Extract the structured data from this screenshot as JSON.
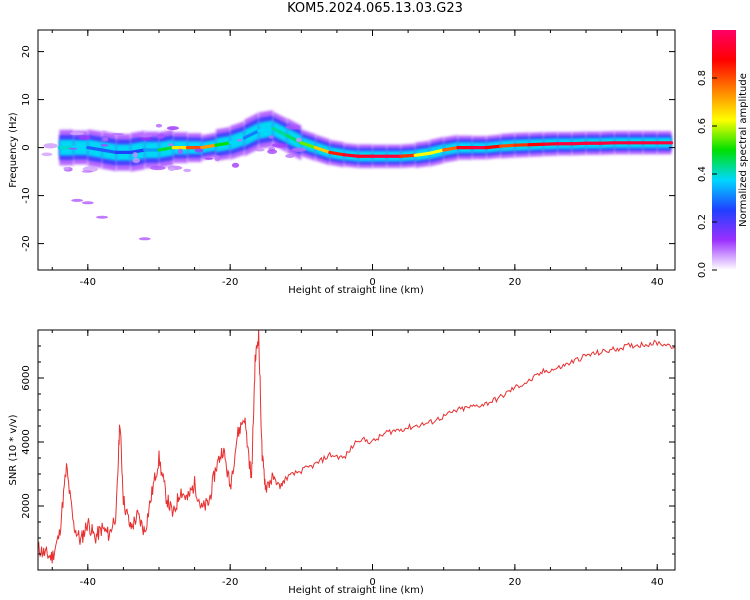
{
  "figure_title": "KOM5.2024.065.13.03.G23",
  "chart_data": [
    {
      "type": "heatmap",
      "title": "",
      "xlabel": "Height of straight line (km)",
      "ylabel": "Frequency (Hz)",
      "xlim": [
        -47,
        42.5
      ],
      "ylim": [
        -25.5,
        24.5
      ],
      "xticks": [
        -40,
        -20,
        0,
        20,
        40
      ],
      "yticks": [
        -20,
        -10,
        0,
        10,
        20
      ],
      "colorbar": {
        "label": "Normalized spectral amplitude",
        "range": [
          0,
          1
        ],
        "ticks": [
          0.0,
          0.2,
          0.4,
          0.6,
          0.8
        ],
        "colormap": [
          "#ffffff",
          "#9b30ff",
          "#2040ff",
          "#00d8ff",
          "#00e000",
          "#ffff00",
          "#ff8000",
          "#ff0000",
          "#ff0066"
        ]
      },
      "ridge": {
        "x": [
          -44,
          -42,
          -40,
          -38,
          -36,
          -34,
          -32,
          -30,
          -28,
          -26,
          -24,
          -22,
          -20,
          -18,
          -16,
          -14,
          -12,
          -10,
          -8,
          -6,
          -4,
          -2,
          0,
          2,
          4,
          6,
          8,
          10,
          12,
          14,
          16,
          18,
          20,
          22,
          24,
          26,
          28,
          30,
          32,
          34,
          36,
          38,
          40,
          42
        ],
        "frequency": [
          0,
          0,
          0,
          -0.5,
          -1,
          -1,
          -0.5,
          -0.5,
          0,
          0,
          0,
          0.5,
          1,
          2,
          3.5,
          4,
          2.5,
          1,
          0,
          -1,
          -1.5,
          -1.8,
          -1.8,
          -1.8,
          -1.8,
          -1.6,
          -1.2,
          -0.5,
          0,
          0,
          0,
          0.3,
          0.5,
          0.6,
          0.7,
          0.8,
          0.8,
          0.9,
          0.9,
          1,
          1,
          1,
          1,
          1
        ],
        "amplitude": [
          0.35,
          0.45,
          0.3,
          0.25,
          0.3,
          0.2,
          0.3,
          0.35,
          0.6,
          0.7,
          0.9,
          0.55,
          0.45,
          0.3,
          0.3,
          0.45,
          0.4,
          0.5,
          0.6,
          0.75,
          0.95,
          0.9,
          0.95,
          0.95,
          0.95,
          0.7,
          0.55,
          0.7,
          0.85,
          0.95,
          0.95,
          0.8,
          0.8,
          0.85,
          0.9,
          0.95,
          0.95,
          0.95,
          0.95,
          0.95,
          0.95,
          0.95,
          0.95,
          0.95
        ]
      }
    },
    {
      "type": "line",
      "title": "",
      "xlabel": "Height of straight line (km)",
      "ylabel": "SNR (10 * v/v)",
      "xlim": [
        -47,
        42.5
      ],
      "ylim": [
        0,
        7500
      ],
      "xticks": [
        -40,
        -20,
        0,
        20,
        40
      ],
      "yticks": [
        2000,
        4000,
        6000
      ],
      "line_color": "#e83030",
      "series": [
        {
          "x": [
            -47,
            -46,
            -45,
            -44,
            -43,
            -42,
            -41,
            -40,
            -39,
            -38,
            -37,
            -36,
            -35.5,
            -35,
            -34,
            -33,
            -32,
            -31,
            -30,
            -29,
            -28,
            -27,
            -26,
            -25,
            -24,
            -23,
            -22,
            -21,
            -20,
            -19,
            -18,
            -17,
            -16.5,
            -16,
            -15.5,
            -15,
            -14,
            -13,
            -12,
            -10,
            -8,
            -6,
            -4,
            -2,
            0,
            2,
            4,
            6,
            8,
            10,
            12,
            14,
            16,
            18,
            20,
            22,
            24,
            26,
            28,
            30,
            32,
            34,
            36,
            38,
            40,
            42.5
          ],
          "values": [
            700,
            500,
            400,
            1100,
            3200,
            1400,
            900,
            1500,
            1000,
            1300,
            1100,
            1800,
            4700,
            2200,
            1300,
            1700,
            1200,
            2400,
            3500,
            2300,
            1700,
            2500,
            2200,
            2700,
            1900,
            2100,
            3200,
            3800,
            2600,
            4200,
            4800,
            2800,
            6500,
            7400,
            3500,
            2600,
            2900,
            2600,
            2900,
            3100,
            3300,
            3600,
            3500,
            4100,
            4000,
            4300,
            4400,
            4500,
            4600,
            4800,
            5000,
            5100,
            5200,
            5400,
            5700,
            5900,
            6200,
            6300,
            6500,
            6700,
            6800,
            6900,
            7000,
            7050,
            7100,
            7000
          ]
        }
      ]
    }
  ]
}
